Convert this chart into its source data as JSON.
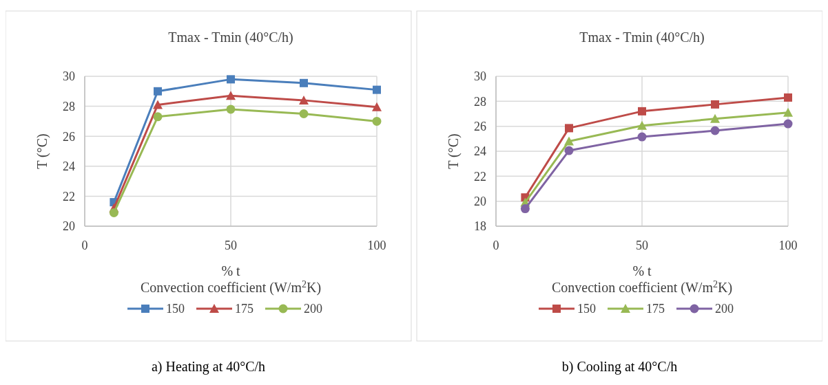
{
  "chart_data": [
    {
      "type": "line",
      "title": "Tmax - Tmin (40°C/h)",
      "xlabel": "%  t\nConvection coefficient (W/m$^{2}$K)",
      "ylabel": "T (°C)",
      "x": [
        10,
        25,
        50,
        75,
        100
      ],
      "xlim": [
        0,
        100
      ],
      "xticks": [
        0,
        50,
        100
      ],
      "ylim": [
        20,
        30
      ],
      "yticks": [
        20,
        22,
        24,
        26,
        28,
        30
      ],
      "grid": true,
      "legend": "bottom",
      "line_style": "solid",
      "series": [
        {
          "name": "150",
          "color": "#4a7ebb",
          "marker": "square",
          "values": [
            21.6,
            29.0,
            29.8,
            29.55,
            29.1
          ]
        },
        {
          "name": "175",
          "color": "#be4b48",
          "marker": "triangle",
          "values": [
            21.2,
            28.1,
            28.7,
            28.4,
            27.95
          ]
        },
        {
          "name": "200",
          "color": "#98b954",
          "marker": "circle",
          "values": [
            20.9,
            27.3,
            27.8,
            27.5,
            27.0
          ]
        }
      ],
      "annotations": [
        "a) Heating at 40°C/h"
      ]
    },
    {
      "type": "line",
      "title": "Tmax - Tmin (40°C/h)",
      "xlabel": "% t\nConvection coefficient (W/m$^{2}$K)",
      "ylabel": "T (°C)",
      "x": [
        10,
        25,
        50,
        75,
        100
      ],
      "xlim": [
        0,
        100
      ],
      "xticks": [
        0,
        50,
        100
      ],
      "ylim": [
        18,
        30
      ],
      "yticks": [
        18,
        20,
        22,
        24,
        26,
        28,
        30
      ],
      "grid": true,
      "legend": "bottom",
      "line_style": "solid",
      "series": [
        {
          "name": "150",
          "color": "#be4b48",
          "marker": "square",
          "values": [
            20.3,
            25.85,
            27.2,
            27.75,
            28.3
          ]
        },
        {
          "name": "175",
          "color": "#98b954",
          "marker": "triangle",
          "values": [
            19.9,
            24.8,
            26.05,
            26.6,
            27.1
          ]
        },
        {
          "name": "200",
          "color": "#7f63a3",
          "marker": "circle",
          "values": [
            19.4,
            24.05,
            25.15,
            25.65,
            26.2
          ]
        }
      ],
      "annotations": [
        "b) Cooling at 40°C/h"
      ]
    }
  ]
}
